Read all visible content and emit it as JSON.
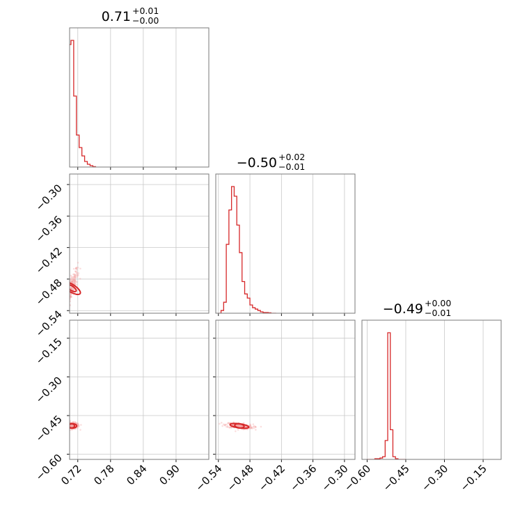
{
  "colors": {
    "series": "#d62728",
    "grid": "#c8c8c8",
    "frame": "#7a7a7a"
  },
  "chart_data": {
    "type": "corner",
    "grid": true,
    "parameters": [
      {
        "title": {
          "value": "0.71",
          "plus": "+0.01",
          "minus": "−0.00"
        },
        "range": [
          0.705,
          0.96
        ],
        "ticks": [
          0.72,
          0.78,
          0.84,
          0.9
        ],
        "tick_labels": [
          "0.72",
          "0.78",
          "0.84",
          "0.90"
        ],
        "histogram": {
          "bin_edges": [
            0.7025,
            0.7075,
            0.7125,
            0.7175,
            0.7225,
            0.7275,
            0.7325,
            0.7375,
            0.7425,
            0.7475,
            0.7525
          ],
          "counts": [
            88,
            91,
            51,
            23,
            14,
            8,
            4,
            2,
            1,
            0.3
          ]
        }
      },
      {
        "title": {
          "value": "−0.50",
          "plus": "+0.02",
          "minus": "−0.01"
        },
        "range": [
          -0.545,
          -0.28
        ],
        "ticks": [
          -0.54,
          -0.48,
          -0.42,
          -0.36,
          -0.3
        ],
        "tick_labels": [
          "−0.54",
          "−0.48",
          "−0.42",
          "−0.36",
          "−0.30"
        ],
        "histogram": {
          "bin_edges": [
            -0.54,
            -0.535,
            -0.53,
            -0.525,
            -0.52,
            -0.515,
            -0.51,
            -0.505,
            -0.5,
            -0.495,
            -0.49,
            -0.485,
            -0.48,
            -0.475,
            -0.47,
            -0.465,
            -0.46,
            -0.455,
            -0.45,
            -0.445,
            -0.44,
            -0.435,
            -0.43
          ],
          "counts": [
            0,
            2,
            8,
            50,
            75,
            92,
            85,
            64,
            44,
            23,
            14,
            11,
            6,
            4,
            3,
            2,
            1,
            0.5,
            0.5,
            0.3,
            0,
            0
          ]
        }
      },
      {
        "title": {
          "value": "−0.49",
          "plus": "+0.00",
          "minus": "−0.01"
        },
        "range": [
          -0.62,
          -0.08
        ],
        "ticks": [
          -0.6,
          -0.45,
          -0.3,
          -0.15
        ],
        "tick_labels": [
          "−0.60",
          "−0.45",
          "−0.30",
          "−0.15"
        ],
        "histogram": {
          "bin_edges": [
            -0.6,
            -0.59,
            -0.58,
            -0.57,
            -0.56,
            -0.55,
            -0.54,
            -0.53,
            -0.52,
            -0.51,
            -0.5,
            -0.49,
            -0.48,
            -0.47,
            -0.46,
            -0.45
          ],
          "counts": [
            0,
            0,
            0,
            0.5,
            0.5,
            1,
            2,
            14,
            94,
            22,
            2,
            0.5,
            0,
            0,
            0
          ]
        }
      }
    ],
    "pairs": [
      {
        "x_param": 0,
        "y_param": 1,
        "center": [
          0.708,
          -0.497
        ],
        "spread": [
          0.006,
          0.018
        ],
        "correlation": 0.8,
        "contours": [
          {
            "dx": 0.004,
            "dy": 0.011,
            "rotation_deg": -58
          },
          {
            "dx": 0.007,
            "dy": 0.02,
            "rotation_deg": -58
          }
        ]
      },
      {
        "x_param": 0,
        "y_param": 2,
        "center": [
          0.709,
          -0.49
        ],
        "spread": [
          0.007,
          0.006
        ],
        "correlation": 0,
        "contours": [
          {
            "dx": 0.005,
            "dy": 0.005,
            "rotation_deg": 0
          },
          {
            "dx": 0.009,
            "dy": 0.009,
            "rotation_deg": 0
          }
        ]
      },
      {
        "x_param": 1,
        "y_param": 2,
        "center": [
          -0.5,
          -0.49
        ],
        "spread": [
          0.013,
          0.006
        ],
        "correlation": -0.4,
        "contours": [
          {
            "dx": 0.009,
            "dy": 0.004,
            "rotation_deg": 8
          },
          {
            "dx": 0.018,
            "dy": 0.008,
            "rotation_deg": 8
          }
        ]
      }
    ],
    "yaxis_ticks": {
      "row1": {
        "ticks": [
          -0.3,
          -0.36,
          -0.42,
          -0.48,
          -0.54
        ],
        "tick_labels": [
          "−0.30",
          "−0.36",
          "−0.42",
          "−0.48",
          "−0.54"
        ]
      },
      "row2": {
        "ticks": [
          -0.15,
          -0.3,
          -0.45,
          -0.6
        ],
        "tick_labels": [
          "−0.15",
          "−0.30",
          "−0.45",
          "−0.60"
        ]
      }
    }
  }
}
